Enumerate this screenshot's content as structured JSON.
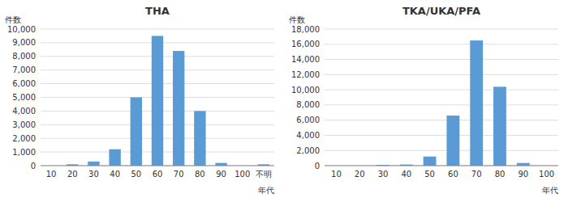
{
  "chart_data": [
    {
      "type": "bar",
      "title": "THA",
      "categories": [
        "10",
        "20",
        "30",
        "40",
        "50",
        "60",
        "70",
        "80",
        "90",
        "100",
        "不明"
      ],
      "values": [
        0,
        100,
        300,
        1200,
        5000,
        9500,
        8400,
        4000,
        200,
        0,
        100
      ],
      "color": "#5B9BD5",
      "ylim": [
        0,
        10000
      ],
      "yticks": [
        0,
        {
          "value": 1000,
          "label": "1,000"
        },
        {
          "value": 2000,
          "label": "2,000"
        },
        {
          "value": 3000,
          "label": "3,000"
        },
        {
          "value": 4000,
          "label": "4,000"
        },
        {
          "value": 5000,
          "label": "5,000"
        },
        {
          "value": 6000,
          "label": "6,000"
        },
        {
          "value": 7000,
          "label": "7,000"
        },
        {
          "value": 8000,
          "label": "8,000"
        },
        {
          "value": 9000,
          "label": "9,000"
        },
        {
          "value": 10000,
          "label": "10,000"
        }
      ],
      "ylabel": "件数",
      "xlabel": "年代",
      "grid": true
    },
    {
      "type": "bar",
      "title": "TKA/UKA/PFA",
      "categories": [
        "10",
        "20",
        "30",
        "40",
        "50",
        "60",
        "70",
        "80",
        "90",
        "100"
      ],
      "values": [
        0,
        0,
        100,
        150,
        1200,
        6600,
        16500,
        10400,
        350,
        0
      ],
      "color": "#5B9BD5",
      "ylim": [
        0,
        18000
      ],
      "yticks": [
        0,
        {
          "value": 2000,
          "label": "2,000"
        },
        {
          "value": 4000,
          "label": "4,000"
        },
        {
          "value": 6000,
          "label": "6,000"
        },
        {
          "value": 8000,
          "label": "8,000"
        },
        {
          "value": 10000,
          "label": "10,000"
        },
        {
          "value": 12000,
          "label": "12,000"
        },
        {
          "value": 14000,
          "label": "14,000"
        },
        {
          "value": 16000,
          "label": "16,000"
        },
        {
          "value": 18000,
          "label": "18,000"
        }
      ],
      "ylabel": "件数",
      "xlabel": "年代",
      "grid": true
    }
  ]
}
